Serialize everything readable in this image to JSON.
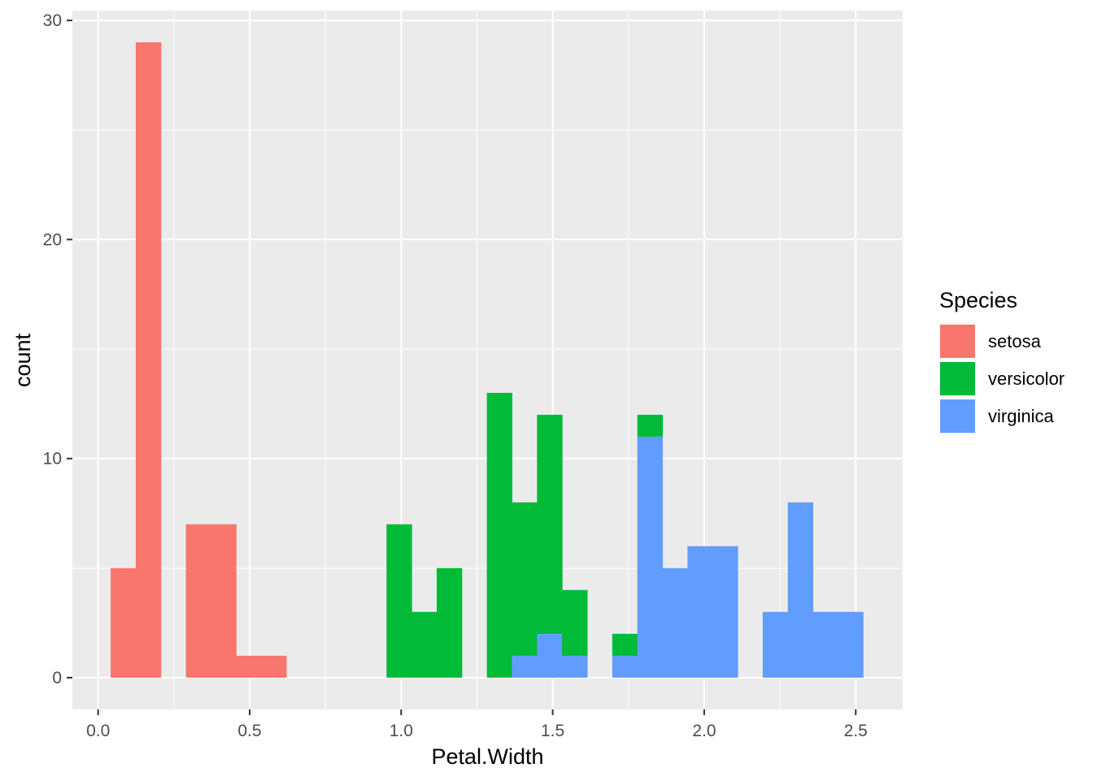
{
  "chart_data": {
    "type": "bar",
    "subtype": "stacked-histogram",
    "xlabel": "Petal.Width",
    "ylabel": "count",
    "xlim": [
      -0.085,
      2.655
    ],
    "ylim": [
      -1.45,
      30.45
    ],
    "x_ticks": [
      0.0,
      0.5,
      1.0,
      1.5,
      2.0,
      2.5
    ],
    "x_tick_labels": [
      "0.0",
      "0.5",
      "1.0",
      "1.5",
      "2.0",
      "2.5"
    ],
    "y_ticks": [
      0,
      10,
      20,
      30
    ],
    "y_tick_labels": [
      "0",
      "10",
      "20",
      "30"
    ],
    "bins": [
      [
        0.0414,
        0.1241
      ],
      [
        0.1241,
        0.2069
      ],
      [
        0.2069,
        0.2897
      ],
      [
        0.2897,
        0.3724
      ],
      [
        0.3724,
        0.4552
      ],
      [
        0.4552,
        0.5379
      ],
      [
        0.5379,
        0.6207
      ],
      [
        0.6207,
        0.7034
      ],
      [
        0.7034,
        0.7862
      ],
      [
        0.7862,
        0.869
      ],
      [
        0.869,
        0.9517
      ],
      [
        0.9517,
        1.0345
      ],
      [
        1.0345,
        1.1172
      ],
      [
        1.1172,
        1.2
      ],
      [
        1.2,
        1.2828
      ],
      [
        1.2828,
        1.3655
      ],
      [
        1.3655,
        1.4483
      ],
      [
        1.4483,
        1.531
      ],
      [
        1.531,
        1.6138
      ],
      [
        1.6138,
        1.6966
      ],
      [
        1.6966,
        1.7793
      ],
      [
        1.7793,
        1.8621
      ],
      [
        1.8621,
        1.9448
      ],
      [
        1.9448,
        2.0276
      ],
      [
        2.0276,
        2.1103
      ],
      [
        2.1103,
        2.1931
      ],
      [
        2.1931,
        2.2759
      ],
      [
        2.2759,
        2.3586
      ],
      [
        2.3586,
        2.4414
      ],
      [
        2.4414,
        2.5241
      ]
    ],
    "series": [
      {
        "name": "setosa",
        "color": "#F8766D",
        "values": [
          5,
          29,
          0,
          7,
          7,
          1,
          1,
          0,
          0,
          0,
          0,
          0,
          0,
          0,
          0,
          0,
          0,
          0,
          0,
          0,
          0,
          0,
          0,
          0,
          0,
          0,
          0,
          0,
          0,
          0
        ]
      },
      {
        "name": "versicolor",
        "color": "#00BA38",
        "values": [
          0,
          0,
          0,
          0,
          0,
          0,
          0,
          0,
          0,
          0,
          0,
          7,
          3,
          5,
          0,
          13,
          7,
          10,
          3,
          0,
          1,
          1,
          0,
          0,
          0,
          0,
          0,
          0,
          0,
          0
        ]
      },
      {
        "name": "virginica",
        "color": "#619CFF",
        "values": [
          0,
          0,
          0,
          0,
          0,
          0,
          0,
          0,
          0,
          0,
          0,
          0,
          0,
          0,
          0,
          0,
          1,
          2,
          1,
          0,
          1,
          11,
          5,
          6,
          6,
          0,
          3,
          8,
          3,
          3
        ]
      }
    ],
    "legend": {
      "title": "Species",
      "position": "right"
    },
    "grid": true,
    "panel_background": "#EBEBEB",
    "grid_color": "#FFFFFF"
  }
}
